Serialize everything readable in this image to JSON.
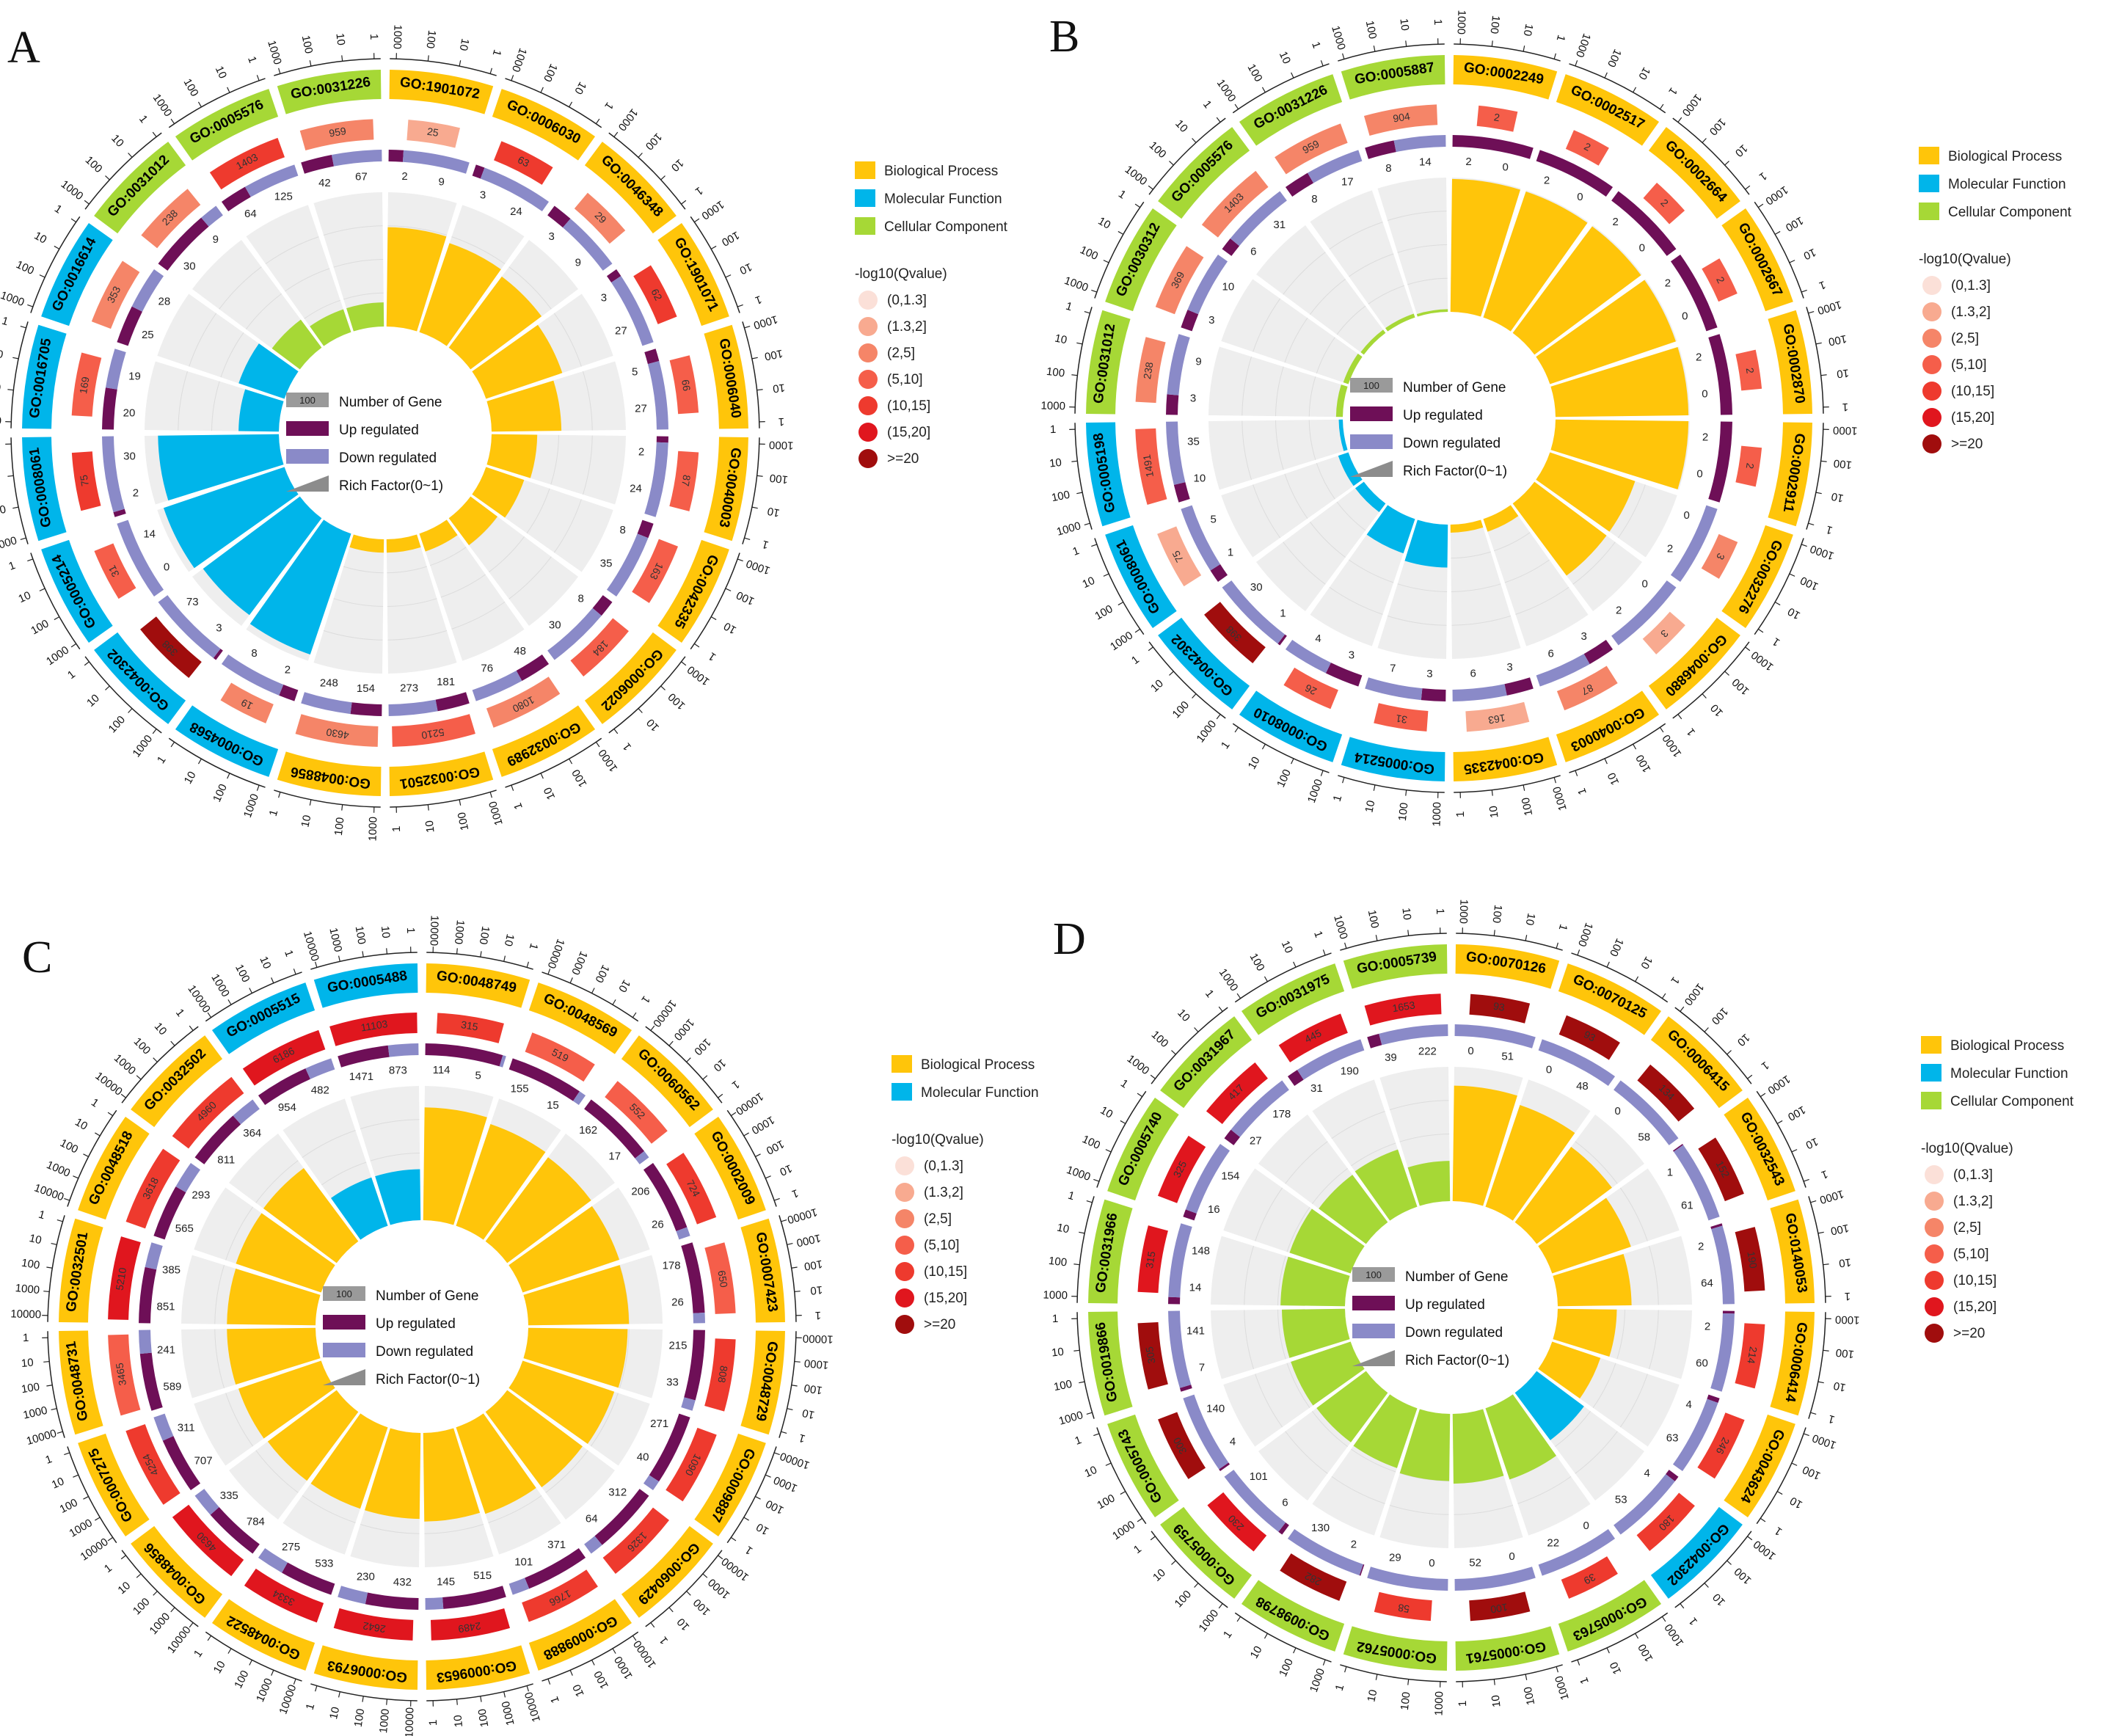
{
  "figure": {
    "panel_letters": [
      "A",
      "B",
      "C",
      "D"
    ]
  },
  "colors": {
    "Biological Process": "#FFC50A",
    "Molecular Function": "#00B5EA",
    "Cellular Component": "#A6D836",
    "up": "#6E0F57",
    "down": "#8A8AC8",
    "track_bg": "#EEEEEE",
    "q_scale": [
      "#FBE0D8",
      "#F8AA90",
      "#F58568",
      "#F55E4A",
      "#EE3A2E",
      "#E0161E",
      "#A00D0D"
    ]
  },
  "legend": {
    "q_title": "-log10(Qvalue)",
    "q_bins": [
      "(0,1.3]",
      "(1.3,2]",
      "(2,5]",
      "(5,10]",
      "(10,15]",
      "(15,20]",
      ">=20"
    ],
    "inner": {
      "scale_value": "100",
      "number_of_gene": "Number of Gene",
      "up": "Up regulated",
      "down": "Down regulated",
      "rich": "Rich Factor(0~1)"
    },
    "tick_values": [
      "1",
      "10",
      "100",
      "1000"
    ],
    "tick_values_c": [
      "1",
      "10",
      "100",
      "1000",
      "10000"
    ]
  },
  "chart_data": [
    {
      "panel": "A",
      "type": "circular-go-enrichment",
      "categories": [
        "Biological Process",
        "Molecular Function",
        "Cellular Component"
      ],
      "terms": [
        {
          "id": "GO:1901072",
          "cat": "Biological Process",
          "bg": "25",
          "q": 1,
          "up": "2",
          "down": "9",
          "rf": 0.74
        },
        {
          "id": "GO:0006030",
          "cat": "Biological Process",
          "bg": "63",
          "q": 4,
          "up": "3",
          "down": "24",
          "rf": 0.7
        },
        {
          "id": "GO:0046348",
          "cat": "Biological Process",
          "bg": "29",
          "q": 2,
          "up": "3",
          "down": "9",
          "rf": 0.66
        },
        {
          "id": "GO:1901071",
          "cat": "Biological Process",
          "bg": "62",
          "q": 4,
          "up": "3",
          "down": "27",
          "rf": 0.6
        },
        {
          "id": "GO:0006040",
          "cat": "Biological Process",
          "bg": "66",
          "q": 3,
          "up": "5",
          "down": "27",
          "rf": 0.52
        },
        {
          "id": "GO:0040003",
          "cat": "Biological Process",
          "bg": "87",
          "q": 3,
          "up": "2",
          "down": "24",
          "rf": 0.34
        },
        {
          "id": "GO:0042335",
          "cat": "Biological Process",
          "bg": "163",
          "q": 3,
          "up": "8",
          "down": "35",
          "rf": 0.3
        },
        {
          "id": "GO:0006022",
          "cat": "Biological Process",
          "bg": "184",
          "q": 3,
          "up": "8",
          "down": "30",
          "rf": 0.25
        },
        {
          "id": "GO:0032989",
          "cat": "Biological Process",
          "bg": "1080",
          "q": 2,
          "up": "48",
          "down": "76",
          "rf": 0.14
        },
        {
          "id": "GO:0032501",
          "cat": "Biological Process",
          "bg": "5210",
          "q": 3,
          "up": "181",
          "down": "273",
          "rf": 0.1
        },
        {
          "id": "GO:0048856",
          "cat": "Biological Process",
          "bg": "4630",
          "q": 2,
          "up": "154",
          "down": "248",
          "rf": 0.1
        },
        {
          "id": "GO:0004568",
          "cat": "Molecular Function",
          "bg": "19",
          "q": 2,
          "up": "2",
          "down": "8",
          "rf": 0.95
        },
        {
          "id": "GO:0042302",
          "cat": "Molecular Function",
          "bg": "398",
          "q": 6,
          "up": "3",
          "down": "73",
          "rf": 0.9
        },
        {
          "id": "GO:0005214",
          "cat": "Molecular Function",
          "bg": "31",
          "q": 3,
          "up": "0",
          "down": "14",
          "rf": 0.95
        },
        {
          "id": "GO:0008061",
          "cat": "Molecular Function",
          "bg": "75",
          "q": 4,
          "up": "2",
          "down": "30",
          "rf": 0.9
        },
        {
          "id": "GO:0016705",
          "cat": "Molecular Function",
          "bg": "169",
          "q": 3,
          "up": "20",
          "down": "19",
          "rf": 0.3
        },
        {
          "id": "GO:0016614",
          "cat": "Molecular Function",
          "bg": "353",
          "q": 2,
          "up": "25",
          "down": "28",
          "rf": 0.36
        },
        {
          "id": "GO:0031012",
          "cat": "Cellular Component",
          "bg": "238",
          "q": 2,
          "up": "30",
          "down": "9",
          "rf": 0.26
        },
        {
          "id": "GO:0005576",
          "cat": "Cellular Component",
          "bg": "1403",
          "q": 4,
          "up": "64",
          "down": "125",
          "rf": 0.18
        },
        {
          "id": "GO:0031226",
          "cat": "Cellular Component",
          "bg": "959",
          "q": 2,
          "up": "42",
          "down": "67",
          "rf": 0.18
        }
      ]
    },
    {
      "panel": "B",
      "type": "circular-go-enrichment",
      "categories": [
        "Biological Process",
        "Molecular Function",
        "Cellular Component"
      ],
      "terms": [
        {
          "id": "GO:0002249",
          "cat": "Biological Process",
          "bg": "2",
          "q": 3,
          "up": "2",
          "down": "0",
          "rf": 0.99
        },
        {
          "id": "GO:0002517",
          "cat": "Biological Process",
          "bg": "2",
          "q": 3,
          "up": "2",
          "down": "0",
          "rf": 0.99
        },
        {
          "id": "GO:0002664",
          "cat": "Biological Process",
          "bg": "2",
          "q": 3,
          "up": "2",
          "down": "0",
          "rf": 0.99
        },
        {
          "id": "GO:0002667",
          "cat": "Biological Process",
          "bg": "2",
          "q": 3,
          "up": "2",
          "down": "0",
          "rf": 0.99
        },
        {
          "id": "GO:0002870",
          "cat": "Biological Process",
          "bg": "2",
          "q": 3,
          "up": "2",
          "down": "0",
          "rf": 0.99
        },
        {
          "id": "GO:0002911",
          "cat": "Biological Process",
          "bg": "2",
          "q": 3,
          "up": "2",
          "down": "0",
          "rf": 0.99
        },
        {
          "id": "GO:0032276",
          "cat": "Biological Process",
          "bg": "3",
          "q": 2,
          "up": "0",
          "down": "2",
          "rf": 0.67
        },
        {
          "id": "GO:0046880",
          "cat": "Biological Process",
          "bg": "3",
          "q": 1,
          "up": "0",
          "down": "2",
          "rf": 0.67
        },
        {
          "id": "GO:0040003",
          "cat": "Biological Process",
          "bg": "87",
          "q": 2,
          "up": "3",
          "down": "6",
          "rf": 0.1
        },
        {
          "id": "GO:0042335",
          "cat": "Biological Process",
          "bg": "163",
          "q": 1,
          "up": "3",
          "down": "6",
          "rf": 0.06
        },
        {
          "id": "GO:0005214",
          "cat": "Molecular Function",
          "bg": "31",
          "q": 3,
          "up": "3",
          "down": "7",
          "rf": 0.32
        },
        {
          "id": "GO:0008010",
          "cat": "Molecular Function",
          "bg": "26",
          "q": 3,
          "up": "3",
          "down": "4",
          "rf": 0.27
        },
        {
          "id": "GO:0042302",
          "cat": "Molecular Function",
          "bg": "398",
          "q": 6,
          "up": "1",
          "down": "30",
          "rf": 0.08
        },
        {
          "id": "GO:0008061",
          "cat": "Molecular Function",
          "bg": "75",
          "q": 1,
          "up": "1",
          "down": "5",
          "rf": 0.08
        },
        {
          "id": "GO:0005198",
          "cat": "Molecular Function",
          "bg": "1491",
          "q": 3,
          "up": "10",
          "down": "35",
          "rf": 0.03
        },
        {
          "id": "GO:0031012",
          "cat": "Cellular Component",
          "bg": "238",
          "q": 2,
          "up": "3",
          "down": "9",
          "rf": 0.05
        },
        {
          "id": "GO:0030312",
          "cat": "Cellular Component",
          "bg": "369",
          "q": 2,
          "up": "3",
          "down": "10",
          "rf": 0.04
        },
        {
          "id": "GO:0005576",
          "cat": "Cellular Component",
          "bg": "1403",
          "q": 2,
          "up": "6",
          "down": "31",
          "rf": 0.03
        },
        {
          "id": "GO:0031226",
          "cat": "Cellular Component",
          "bg": "959",
          "q": 2,
          "up": "8",
          "down": "17",
          "rf": 0.03
        },
        {
          "id": "GO:0005887",
          "cat": "Cellular Component",
          "bg": "904",
          "q": 2,
          "up": "8",
          "down": "14",
          "rf": 0.02
        }
      ]
    },
    {
      "panel": "C",
      "type": "circular-go-enrichment",
      "categories": [
        "Biological Process",
        "Molecular Function"
      ],
      "terms": [
        {
          "id": "GO:0048749",
          "cat": "Biological Process",
          "bg": "315",
          "q": 4,
          "up": "114",
          "down": "5",
          "rf": 0.84
        },
        {
          "id": "GO:0048569",
          "cat": "Biological Process",
          "bg": "519",
          "q": 3,
          "up": "155",
          "down": "15",
          "rf": 0.8
        },
        {
          "id": "GO:0060562",
          "cat": "Biological Process",
          "bg": "552",
          "q": 3,
          "up": "162",
          "down": "17",
          "rf": 0.78
        },
        {
          "id": "GO:0002009",
          "cat": "Biological Process",
          "bg": "724",
          "q": 4,
          "up": "206",
          "down": "26",
          "rf": 0.76
        },
        {
          "id": "GO:0007423",
          "cat": "Biological Process",
          "bg": "650",
          "q": 3,
          "up": "178",
          "down": "26",
          "rf": 0.75
        },
        {
          "id": "GO:0048729",
          "cat": "Biological Process",
          "bg": "808",
          "q": 4,
          "up": "215",
          "down": "33",
          "rf": 0.74
        },
        {
          "id": "GO:0009887",
          "cat": "Biological Process",
          "bg": "1090",
          "q": 4,
          "up": "271",
          "down": "40",
          "rf": 0.72
        },
        {
          "id": "GO:0060429",
          "cat": "Biological Process",
          "bg": "1326",
          "q": 4,
          "up": "312",
          "down": "64",
          "rf": 0.7
        },
        {
          "id": "GO:0009888",
          "cat": "Biological Process",
          "bg": "1766",
          "q": 4,
          "up": "371",
          "down": "101",
          "rf": 0.68
        },
        {
          "id": "GO:0009653",
          "cat": "Biological Process",
          "bg": "2489",
          "q": 5,
          "up": "515",
          "down": "145",
          "rf": 0.66
        },
        {
          "id": "GO:0006793",
          "cat": "Biological Process",
          "bg": "2642",
          "q": 5,
          "up": "432",
          "down": "230",
          "rf": 0.64
        },
        {
          "id": "GO:0048522",
          "cat": "Biological Process",
          "bg": "3334",
          "q": 5,
          "up": "533",
          "down": "275",
          "rf": 0.64
        },
        {
          "id": "GO:0048856",
          "cat": "Biological Process",
          "bg": "4630",
          "q": 5,
          "up": "784",
          "down": "335",
          "rf": 0.64
        },
        {
          "id": "GO:0007275",
          "cat": "Biological Process",
          "bg": "4254",
          "q": 4,
          "up": "707",
          "down": "311",
          "rf": 0.65
        },
        {
          "id": "GO:0048731",
          "cat": "Biological Process",
          "bg": "3465",
          "q": 3,
          "up": "589",
          "down": "241",
          "rf": 0.66
        },
        {
          "id": "GO:0032501",
          "cat": "Biological Process",
          "bg": "5210",
          "q": 5,
          "up": "851",
          "down": "385",
          "rf": 0.66
        },
        {
          "id": "GO:0048518",
          "cat": "Biological Process",
          "bg": "3618",
          "q": 4,
          "up": "565",
          "down": "293",
          "rf": 0.67
        },
        {
          "id": "GO:0032502",
          "cat": "Biological Process",
          "bg": "4960",
          "q": 4,
          "up": "811",
          "down": "364",
          "rf": 0.68
        },
        {
          "id": "GO:0005515",
          "cat": "Molecular Function",
          "bg": "6186",
          "q": 5,
          "up": "954",
          "down": "482",
          "rf": 0.38
        },
        {
          "id": "GO:0005488",
          "cat": "Molecular Function",
          "bg": "11103",
          "q": 5,
          "up": "1471",
          "down": "873",
          "rf": 0.38
        }
      ]
    },
    {
      "panel": "D",
      "type": "circular-go-enrichment",
      "categories": [
        "Biological Process",
        "Molecular Function",
        "Cellular Component"
      ],
      "terms": [
        {
          "id": "GO:0070126",
          "cat": "Biological Process",
          "bg": "93",
          "q": 6,
          "up": "0",
          "down": "51",
          "rf": 0.86
        },
        {
          "id": "GO:0070125",
          "cat": "Biological Process",
          "bg": "93",
          "q": 6,
          "up": "0",
          "down": "48",
          "rf": 0.8
        },
        {
          "id": "GO:0006415",
          "cat": "Biological Process",
          "bg": "134",
          "q": 6,
          "up": "0",
          "down": "58",
          "rf": 0.7
        },
        {
          "id": "GO:0032543",
          "cat": "Biological Process",
          "bg": "152",
          "q": 6,
          "up": "1",
          "down": "61",
          "rf": 0.62
        },
        {
          "id": "GO:0140053",
          "cat": "Biological Process",
          "bg": "190",
          "q": 6,
          "up": "2",
          "down": "64",
          "rf": 0.55
        },
        {
          "id": "GO:0006414",
          "cat": "Biological Process",
          "bg": "214",
          "q": 4,
          "up": "2",
          "down": "60",
          "rf": 0.44
        },
        {
          "id": "GO:0043624",
          "cat": "Biological Process",
          "bg": "246",
          "q": 4,
          "up": "4",
          "down": "63",
          "rf": 0.38
        },
        {
          "id": "GO:0042302",
          "cat": "Molecular Function",
          "bg": "180",
          "q": 4,
          "up": "4",
          "down": "53",
          "rf": 0.44
        },
        {
          "id": "GO:0005763",
          "cat": "Cellular Component",
          "bg": "39",
          "q": 4,
          "up": "0",
          "down": "22",
          "rf": 0.56
        },
        {
          "id": "GO:0005761",
          "cat": "Cellular Component",
          "bg": "100",
          "q": 6,
          "up": "0",
          "down": "52",
          "rf": 0.52
        },
        {
          "id": "GO:0005762",
          "cat": "Cellular Component",
          "bg": "58",
          "q": 4,
          "up": "0",
          "down": "29",
          "rf": 0.5
        },
        {
          "id": "GO:0098798",
          "cat": "Cellular Component",
          "bg": "282",
          "q": 6,
          "up": "2",
          "down": "130",
          "rf": 0.47
        },
        {
          "id": "GO:0005759",
          "cat": "Cellular Component",
          "bg": "230",
          "q": 5,
          "up": "6",
          "down": "101",
          "rf": 0.46
        },
        {
          "id": "GO:0005743",
          "cat": "Cellular Component",
          "bg": "300",
          "q": 6,
          "up": "4",
          "down": "140",
          "rf": 0.47
        },
        {
          "id": "GO:0019866",
          "cat": "Cellular Component",
          "bg": "305",
          "q": 6,
          "up": "7",
          "down": "141",
          "rf": 0.47
        },
        {
          "id": "GO:0031966",
          "cat": "Cellular Component",
          "bg": "315",
          "q": 5,
          "up": "14",
          "down": "148",
          "rf": 0.48
        },
        {
          "id": "GO:0005740",
          "cat": "Cellular Component",
          "bg": "325",
          "q": 5,
          "up": "16",
          "down": "154",
          "rf": 0.48
        },
        {
          "id": "GO:0031967",
          "cat": "Cellular Component",
          "bg": "417",
          "q": 5,
          "up": "27",
          "down": "178",
          "rf": 0.44
        },
        {
          "id": "GO:0031975",
          "cat": "Cellular Component",
          "bg": "445",
          "q": 5,
          "up": "31",
          "down": "190",
          "rf": 0.45
        },
        {
          "id": "GO:0005739",
          "cat": "Cellular Component",
          "bg": "1653",
          "q": 5,
          "up": "39",
          "down": "222",
          "rf": 0.3
        }
      ]
    }
  ]
}
